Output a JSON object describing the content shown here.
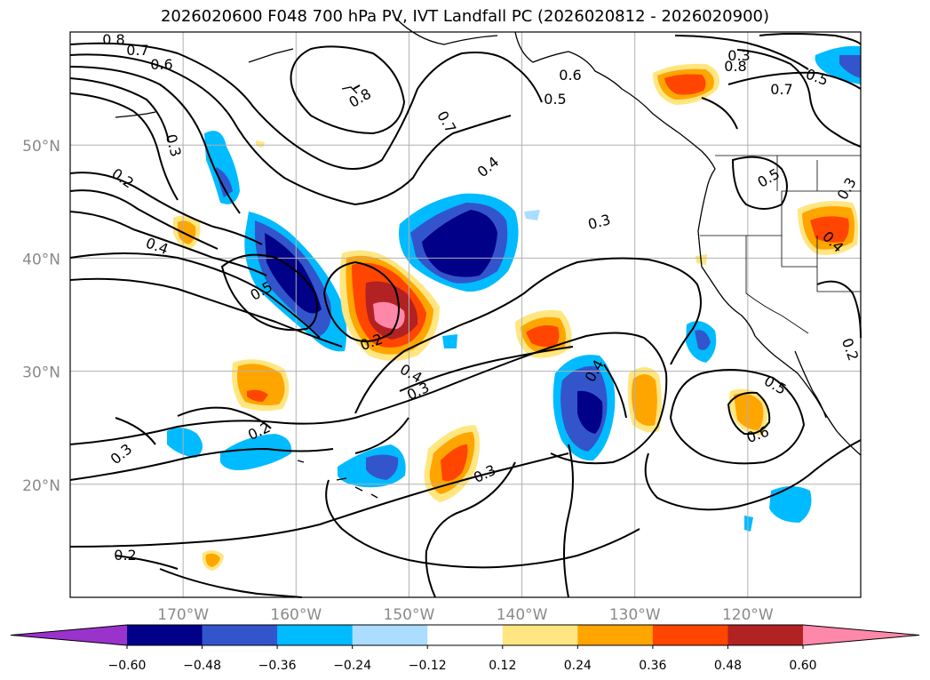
{
  "title": "2026020600 F048 700 hPa PV, IVT Landfall PC (2026020812 - 2026020900)",
  "map": {
    "lon_range": [
      -180,
      -110
    ],
    "lat_range": [
      10,
      60
    ],
    "lat_ticks": [
      {
        "value": 50,
        "label": "50°N"
      },
      {
        "value": 40,
        "label": "40°N"
      },
      {
        "value": 30,
        "label": "30°N"
      },
      {
        "value": 20,
        "label": "20°N"
      }
    ],
    "lon_ticks": [
      {
        "value": -170,
        "label": "170°W"
      },
      {
        "value": -160,
        "label": "160°W"
      },
      {
        "value": -150,
        "label": "150°W"
      },
      {
        "value": -140,
        "label": "140°W"
      },
      {
        "value": -130,
        "label": "130°W"
      },
      {
        "value": -120,
        "label": "120°W"
      }
    ],
    "contour_labels": [
      "0.8",
      "0.7",
      "0.6",
      "0.3",
      "0.2",
      "0.4",
      "0.5",
      "0.8",
      "0.7",
      "0.6",
      "0.5",
      "0.4",
      "0.3",
      "0.5",
      "0.2",
      "0.4",
      "0.3",
      "0.2",
      "0.3",
      "0.2",
      "0.3",
      "0.4",
      "0.5",
      "0.6",
      "0.5",
      "0.7",
      "0.8",
      "0.3",
      "0.3",
      "0.2",
      "0.4"
    ]
  },
  "colorbar": {
    "extend": "both",
    "ticks": [
      "−0.60",
      "−0.48",
      "−0.36",
      "−0.24",
      "−0.12",
      "0.12",
      "0.24",
      "0.36",
      "0.48",
      "0.60"
    ],
    "colors": [
      "#9933cc",
      "#000088",
      "#3355cc",
      "#00bbff",
      "#aaddff",
      "#ffffff",
      "#ffe680",
      "#ffa500",
      "#ff4500",
      "#b22222",
      "#ff88aa"
    ]
  }
}
